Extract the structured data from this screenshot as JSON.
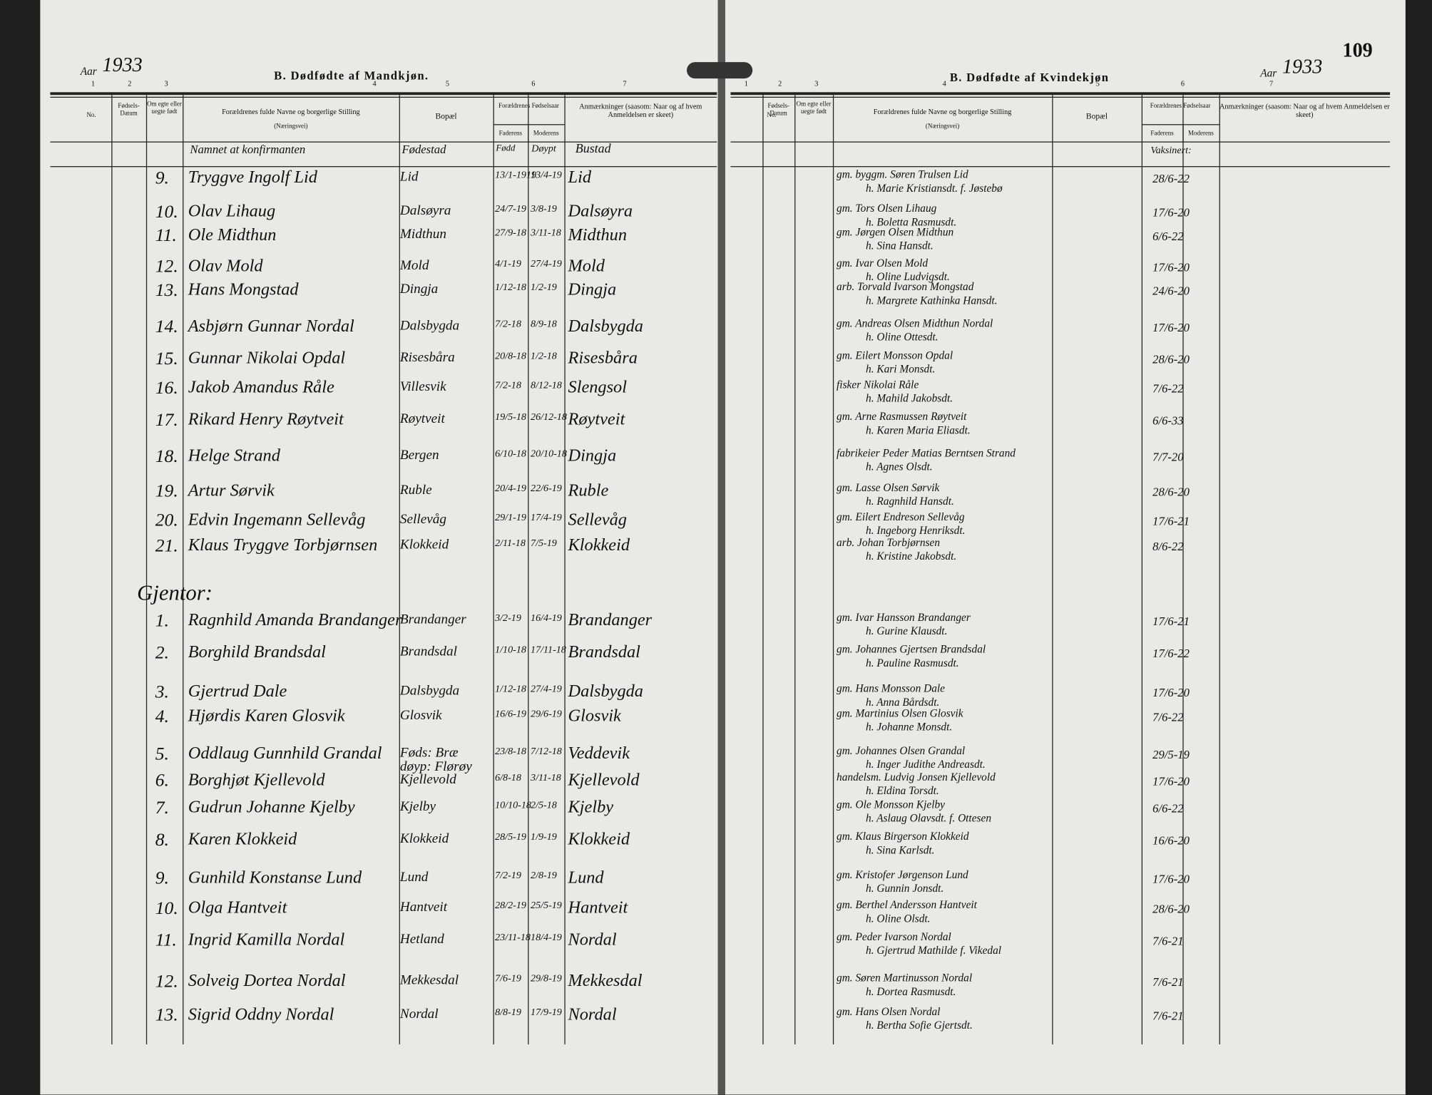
{
  "page_number": "109",
  "left_page": {
    "year_label": "Aar",
    "year": "1933",
    "title": "B. Dødfødte af Mandkjøn.",
    "column_numbers": [
      "1",
      "2",
      "3",
      "4",
      "5",
      "6",
      "7"
    ],
    "headers": {
      "no": "No.",
      "birth_date": "Fødsels-Datum",
      "legitimate": "Om egte eller uegte født",
      "parents": "Forældrenes fulde Navne og borgerlige Stilling",
      "occupation": "(Næringsvei)",
      "residence": "Bopæl",
      "birth_years": "Forældrenes Fødselsaar",
      "father": "Faderens",
      "mother": "Moderens",
      "remarks": "Anmærkninger (saasom: Naar og af hvem Anmeldelsen er skeet)"
    },
    "heading_row": {
      "name": "Namnet at konfirmanten",
      "birthplace": "Fødestad",
      "born": "Fødd",
      "baptized": "Døypt",
      "home": "Bustad"
    },
    "rows": [
      {
        "no": "9.",
        "name": "Tryggve Ingolf Lid",
        "residence": "Lid",
        "born": "13/1-1919",
        "baptized": "13/4-19",
        "home": "Lid"
      },
      {
        "no": "10.",
        "name": "Olav Lihaug",
        "residence": "Dalsøyra",
        "born": "24/7-19",
        "baptized": "3/8-19",
        "home": "Dalsøyra"
      },
      {
        "no": "11.",
        "name": "Ole Midthun",
        "residence": "Midthun",
        "born": "27/9-18",
        "baptized": "3/11-18",
        "home": "Midthun"
      },
      {
        "no": "12.",
        "name": "Olav Mold",
        "residence": "Mold",
        "born": "4/1-19",
        "baptized": "27/4-19",
        "home": "Mold"
      },
      {
        "no": "13.",
        "name": "Hans Mongstad",
        "residence": "Dingja",
        "born": "1/12-18",
        "baptized": "1/2-19",
        "home": "Dingja"
      },
      {
        "no": "14.",
        "name": "Asbjørn Gunnar Nordal",
        "residence": "Dalsbygda",
        "born": "7/2-18",
        "baptized": "8/9-18",
        "home": "Dalsbygda"
      },
      {
        "no": "15.",
        "name": "Gunnar Nikolai Opdal",
        "residence": "Risesbåra",
        "born": "20/8-18",
        "baptized": "1/2-18",
        "home": "Risesbåra"
      },
      {
        "no": "16.",
        "name": "Jakob Amandus Råle",
        "residence": "Villesvik",
        "born": "7/2-18",
        "baptized": "8/12-18",
        "home": "Slengsol"
      },
      {
        "no": "17.",
        "name": "Rikard Henry Røytveit",
        "residence": "Røytveit",
        "born": "19/5-18",
        "baptized": "26/12-18",
        "home": "Røytveit"
      },
      {
        "no": "18.",
        "name": "Helge Strand",
        "residence": "Bergen",
        "born": "6/10-18",
        "baptized": "20/10-18",
        "home": "Dingja"
      },
      {
        "no": "19.",
        "name": "Artur Sørvik",
        "residence": "Ruble",
        "born": "20/4-19",
        "baptized": "22/6-19",
        "home": "Ruble"
      },
      {
        "no": "20.",
        "name": "Edvin Ingemann Sellevåg",
        "residence": "Sellevåg",
        "born": "29/1-19",
        "baptized": "17/4-19",
        "home": "Sellevåg"
      },
      {
        "no": "21.",
        "name": "Klaus Tryggve Torbjørnsen",
        "residence": "Klokkeid",
        "born": "2/11-18",
        "baptized": "7/5-19",
        "home": "Klokkeid"
      }
    ],
    "section_label": "Gjentor:",
    "girl_rows": [
      {
        "no": "1.",
        "name": "Ragnhild Amanda Brandanger",
        "residence": "Brandanger",
        "born": "3/2-19",
        "baptized": "16/4-19",
        "home": "Brandanger"
      },
      {
        "no": "2.",
        "name": "Borghild Brandsdal",
        "residence": "Brandsdal",
        "born": "1/10-18",
        "baptized": "17/11-18",
        "home": "Brandsdal"
      },
      {
        "no": "3.",
        "name": "Gjertrud Dale",
        "residence": "Dalsbygda",
        "born": "1/12-18",
        "baptized": "27/4-19",
        "home": "Dalsbygda"
      },
      {
        "no": "4.",
        "name": "Hjørdis Karen Glosvik",
        "residence": "Glosvik",
        "born": "16/6-19",
        "baptized": "29/6-19",
        "home": "Glosvik"
      },
      {
        "no": "5.",
        "name": "Oddlaug Gunnhild Grandal",
        "residence": "Føds: Bræ døyp: Flørøy",
        "born": "23/8-18",
        "baptized": "7/12-18",
        "home": "Veddevik"
      },
      {
        "no": "6.",
        "name": "Borghjøt Kjellevold",
        "residence": "Kjellevold",
        "born": "6/8-18",
        "baptized": "3/11-18",
        "home": "Kjellevold"
      },
      {
        "no": "7.",
        "name": "Gudrun Johanne Kjelby",
        "residence": "Kjelby",
        "born": "10/10-18",
        "baptized": "2/5-18",
        "home": "Kjelby"
      },
      {
        "no": "8.",
        "name": "Karen Klokkeid",
        "residence": "Klokkeid",
        "born": "28/5-19",
        "baptized": "1/9-19",
        "home": "Klokkeid"
      },
      {
        "no": "9.",
        "name": "Gunhild Konstanse Lund",
        "residence": "Lund",
        "born": "7/2-19",
        "baptized": "2/8-19",
        "home": "Lund"
      },
      {
        "no": "10.",
        "name": "Olga Hantveit",
        "residence": "Hantveit",
        "born": "28/2-19",
        "baptized": "25/5-19",
        "home": "Hantveit"
      },
      {
        "no": "11.",
        "name": "Ingrid Kamilla Nordal",
        "residence": "Hetland",
        "born": "23/11-18",
        "baptized": "18/4-19",
        "home": "Nordal"
      },
      {
        "no": "12.",
        "name": "Solveig Dortea Nordal",
        "residence": "Mekkesdal",
        "born": "7/6-19",
        "baptized": "29/8-19",
        "home": "Mekkesdal"
      },
      {
        "no": "13.",
        "name": "Sigrid Oddny Nordal",
        "residence": "Nordal",
        "born": "8/8-19",
        "baptized": "17/9-19",
        "home": "Nordal"
      }
    ]
  },
  "right_page": {
    "year_label": "Aar",
    "year": "1933",
    "title": "B. Dødfødte af Kvindekjøn",
    "column_numbers": [
      "1",
      "2",
      "3",
      "4",
      "5",
      "6",
      "7"
    ],
    "headers": {
      "no": "No.",
      "birth_date": "Fødsels-Datum",
      "legitimate": "Om egte eller uegte født",
      "parents": "Forældrenes fulde Navne og borgerlige Stilling",
      "occupation": "(Næringsvei)",
      "residence": "Bopæl",
      "birth_years": "Forældrenes Fødselsaar",
      "father": "Faderens",
      "mother": "Moderens",
      "remarks": "Anmærkninger (saasom: Naar og af hvem Anmeldelsen er skeet)"
    },
    "heading_row": {
      "vaccinated": "Vaksinert:"
    },
    "rows": [
      {
        "father": "gm. byggm. Søren Trulsen Lid",
        "mother": "h. Marie Kristiansdt. f. Jøstebø",
        "vaccinated": "28/6-22"
      },
      {
        "father": "gm. Tors Olsen Lihaug",
        "mother": "h. Boletta Rasmusdt.",
        "vaccinated": "17/6-20"
      },
      {
        "father": "gm. Jørgen Olsen Midthun",
        "mother": "h. Sina Hansdt.",
        "vaccinated": "6/6-22"
      },
      {
        "father": "gm. Ivar Olsen Mold",
        "mother": "h. Oline Ludvigsdt.",
        "vaccinated": "17/6-20"
      },
      {
        "father": "arb. Torvald Ivarson Mongstad",
        "mother": "h. Margrete Kathinka Hansdt.",
        "vaccinated": "24/6-20"
      },
      {
        "father": "gm. Andreas Olsen Midthun Nordal",
        "mother": "h. Oline Ottesdt.",
        "vaccinated": "17/6-20"
      },
      {
        "father": "gm. Eilert Monsson Opdal",
        "mother": "h. Kari Monsdt.",
        "vaccinated": "28/6-20"
      },
      {
        "father": "fisker Nikolai Råle",
        "mother": "h. Mahild Jakobsdt.",
        "vaccinated": "7/6-22"
      },
      {
        "father": "gm. Arne Rasmussen Røytveit",
        "mother": "h. Karen Maria Eliasdt.",
        "vaccinated": "6/6-33"
      },
      {
        "father": "fabrikeier Peder Matias Berntsen Strand",
        "mother": "h. Agnes Olsdt.",
        "vaccinated": "7/7-20"
      },
      {
        "father": "gm. Lasse Olsen Sørvik",
        "mother": "h. Ragnhild Hansdt.",
        "vaccinated": "28/6-20"
      },
      {
        "father": "gm. Eilert Endreson Sellevåg",
        "mother": "h. Ingeborg Henriksdt.",
        "vaccinated": "17/6-21"
      },
      {
        "father": "arb. Johan Torbjørnsen",
        "mother": "h. Kristine Jakobsdt.",
        "vaccinated": "8/6-22"
      }
    ],
    "girl_rows": [
      {
        "father": "gm. Ivar Hansson Brandanger",
        "mother": "h. Gurine Klausdt.",
        "vaccinated": "17/6-21"
      },
      {
        "father": "gm. Johannes Gjertsen Brandsdal",
        "mother": "h. Pauline Rasmusdt.",
        "vaccinated": "17/6-22"
      },
      {
        "father": "gm. Hans Monsson Dale",
        "mother": "h. Anna Bårdsdt.",
        "vaccinated": "17/6-20"
      },
      {
        "father": "gm. Martinius Olsen Glosvik",
        "mother": "h. Johanne Monsdt.",
        "vaccinated": "7/6-22"
      },
      {
        "father": "gm. Johannes Olsen Grandal",
        "mother": "h. Inger Judithe Andreasdt.",
        "vaccinated": "29/5-19"
      },
      {
        "father": "handelsm. Ludvig Jonsen Kjellevold",
        "mother": "h. Eldina Torsdt.",
        "vaccinated": "17/6-20"
      },
      {
        "father": "gm. Ole Monsson Kjelby",
        "mother": "h. Aslaug Olavsdt. f. Ottesen",
        "vaccinated": "6/6-22"
      },
      {
        "father": "gm. Klaus Birgerson Klokkeid",
        "mother": "h. Sina Karlsdt.",
        "vaccinated": "16/6-20"
      },
      {
        "father": "gm. Kristofer Jørgenson Lund",
        "mother": "h. Gunnin Jonsdt.",
        "vaccinated": "17/6-20"
      },
      {
        "father": "gm. Berthel Andersson Hantveit",
        "mother": "h. Oline Olsdt.",
        "vaccinated": "28/6-20"
      },
      {
        "father": "gm. Peder Ivarson Nordal",
        "mother": "h. Gjertrud Mathilde f. Vikedal",
        "vaccinated": "7/6-21"
      },
      {
        "father": "gm. Søren Martinusson Nordal",
        "mother": "h. Dortea Rasmusdt.",
        "vaccinated": "7/6-21"
      },
      {
        "father": "gm. Hans Olsen Nordal",
        "mother": "h. Bertha Sofie Gjertsdt.",
        "vaccinated": "7/6-21"
      }
    ]
  }
}
